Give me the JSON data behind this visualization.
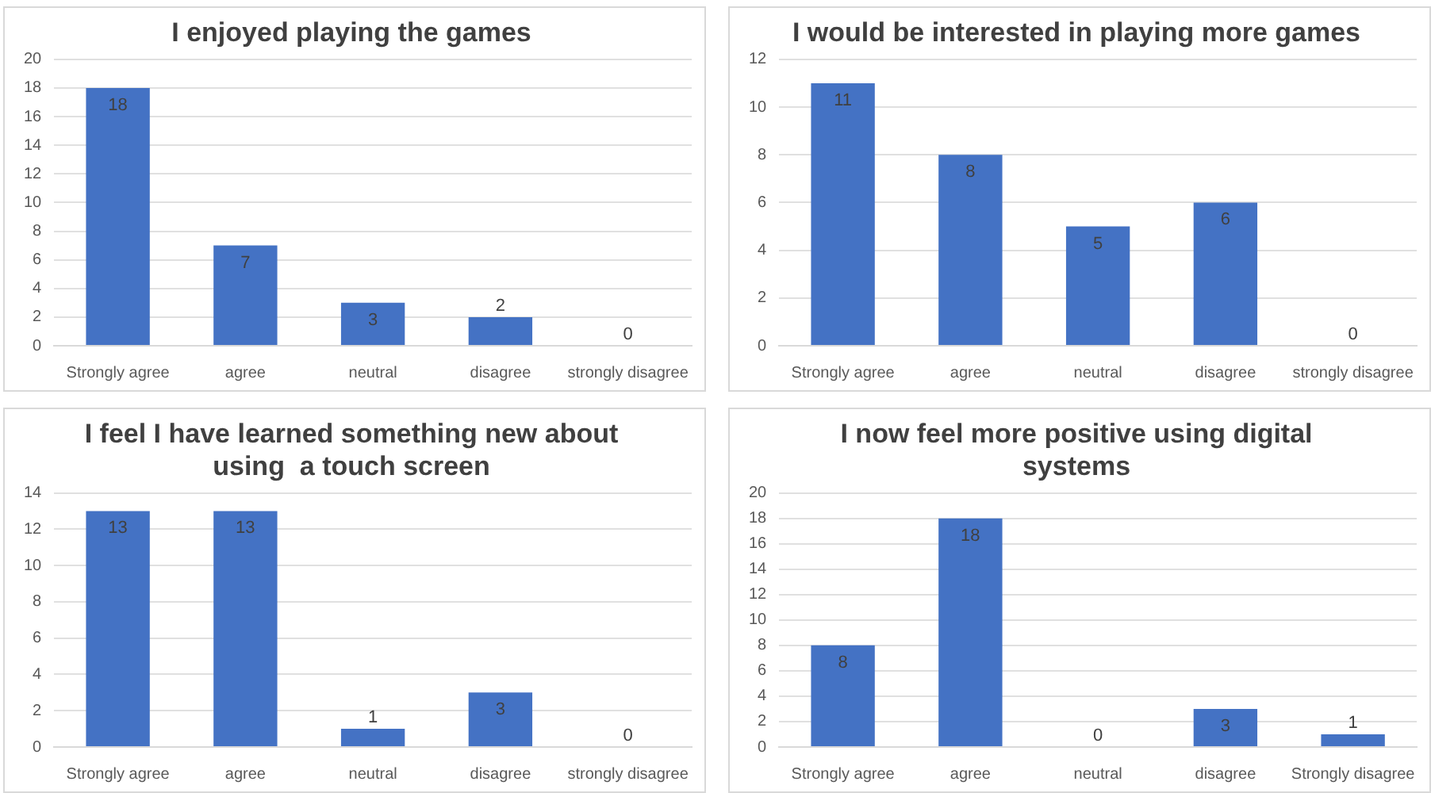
{
  "chart_data": [
    {
      "type": "bar",
      "title": "I enjoyed playing the games",
      "categories": [
        "Strongly agree",
        "agree",
        "neutral",
        "disagree",
        "strongly disagree"
      ],
      "values": [
        18,
        7,
        3,
        2,
        0
      ],
      "color": "#4472c4",
      "ylim": [
        0,
        20
      ],
      "yticks": [
        0,
        2,
        4,
        6,
        8,
        10,
        12,
        14,
        16,
        18,
        20
      ],
      "grid": "y",
      "data_labels": true
    },
    {
      "type": "bar",
      "title": "I would be interested in playing more games",
      "categories": [
        "Strongly agree",
        "agree",
        "neutral",
        "disagree",
        "strongly disagree"
      ],
      "values": [
        11,
        8,
        5,
        6,
        0
      ],
      "color": "#4472c4",
      "ylim": [
        0,
        12
      ],
      "yticks": [
        0,
        2,
        4,
        6,
        8,
        10,
        12
      ],
      "grid": "y",
      "data_labels": true
    },
    {
      "type": "bar",
      "title": "I feel I have learned something new about using  a touch screen",
      "categories": [
        "Strongly agree",
        "agree",
        "neutral",
        "disagree",
        "strongly disagree"
      ],
      "values": [
        13,
        13,
        1,
        3,
        0
      ],
      "color": "#4472c4",
      "ylim": [
        0,
        14
      ],
      "yticks": [
        0,
        2,
        4,
        6,
        8,
        10,
        12,
        14
      ],
      "grid": "y",
      "data_labels": true
    },
    {
      "type": "bar",
      "title": "I now feel more positive using digital systems",
      "categories": [
        "Strongly agree",
        "agree",
        "neutral",
        "disagree",
        "Strongly disagree"
      ],
      "values": [
        8,
        18,
        0,
        3,
        1
      ],
      "color": "#4472c4",
      "ylim": [
        0,
        20
      ],
      "yticks": [
        0,
        2,
        4,
        6,
        8,
        10,
        12,
        14,
        16,
        18,
        20
      ],
      "grid": "y",
      "data_labels": true
    }
  ]
}
